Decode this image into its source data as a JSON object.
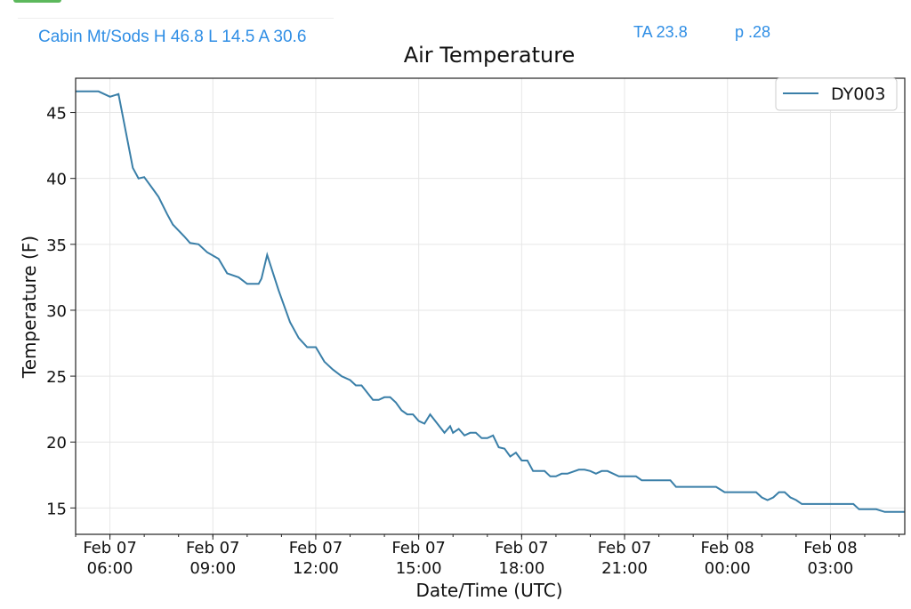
{
  "header": {
    "station_summary": "Cabin Mt/Sods H 46.8 L 14.5 A 30.6",
    "ta": "TA 23.8",
    "p": "p .28"
  },
  "colors": {
    "line": "#3a7fa8",
    "header_text": "#2f8ee5",
    "accent_bar": "#5cb85c"
  },
  "chart_data": {
    "type": "line",
    "title": "Air Temperature",
    "xlabel": "Date/Time (UTC)",
    "ylabel": "Temperature (F)",
    "xlim": [
      "02-07 05:00",
      "02-08 05:10"
    ],
    "ylim": [
      13,
      47.6
    ],
    "grid": true,
    "legend": "top-right",
    "xticks": [
      {
        "t": "02-07 06:00",
        "l1": "Feb 07",
        "l2": "06:00"
      },
      {
        "t": "02-07 09:00",
        "l1": "Feb 07",
        "l2": "09:00"
      },
      {
        "t": "02-07 12:00",
        "l1": "Feb 07",
        "l2": "12:00"
      },
      {
        "t": "02-07 15:00",
        "l1": "Feb 07",
        "l2": "15:00"
      },
      {
        "t": "02-07 18:00",
        "l1": "Feb 07",
        "l2": "18:00"
      },
      {
        "t": "02-07 21:00",
        "l1": "Feb 07",
        "l2": "21:00"
      },
      {
        "t": "02-08 00:00",
        "l1": "Feb 08",
        "l2": "00:00"
      },
      {
        "t": "02-08 03:00",
        "l1": "Feb 08",
        "l2": "03:00"
      }
    ],
    "yticks": [
      15,
      20,
      25,
      30,
      35,
      40,
      45
    ],
    "series": [
      {
        "name": "DY003",
        "points": [
          [
            "02-07 05:00",
            46.6
          ],
          [
            "02-07 05:40",
            46.6
          ],
          [
            "02-07 06:00",
            46.2
          ],
          [
            "02-07 06:15",
            46.4
          ],
          [
            "02-07 06:40",
            40.8
          ],
          [
            "02-07 06:50",
            40.0
          ],
          [
            "02-07 07:00",
            40.1
          ],
          [
            "02-07 07:15",
            39.2
          ],
          [
            "02-07 07:25",
            38.6
          ],
          [
            "02-07 07:40",
            37.3
          ],
          [
            "02-07 07:50",
            36.5
          ],
          [
            "02-07 08:10",
            35.6
          ],
          [
            "02-07 08:20",
            35.1
          ],
          [
            "02-07 08:35",
            35.0
          ],
          [
            "02-07 08:50",
            34.4
          ],
          [
            "02-07 09:10",
            33.9
          ],
          [
            "02-07 09:25",
            32.8
          ],
          [
            "02-07 09:45",
            32.5
          ],
          [
            "02-07 10:00",
            32.0
          ],
          [
            "02-07 10:20",
            32.0
          ],
          [
            "02-07 10:25",
            32.4
          ],
          [
            "02-07 10:35",
            34.2
          ],
          [
            "02-07 10:55",
            31.5
          ],
          [
            "02-07 11:15",
            29.1
          ],
          [
            "02-07 11:30",
            27.9
          ],
          [
            "02-07 11:45",
            27.2
          ],
          [
            "02-07 12:00",
            27.2
          ],
          [
            "02-07 12:15",
            26.1
          ],
          [
            "02-07 12:30",
            25.5
          ],
          [
            "02-07 12:45",
            25.0
          ],
          [
            "02-07 13:00",
            24.7
          ],
          [
            "02-07 13:10",
            24.3
          ],
          [
            "02-07 13:20",
            24.3
          ],
          [
            "02-07 13:40",
            23.2
          ],
          [
            "02-07 13:50",
            23.2
          ],
          [
            "02-07 14:00",
            23.4
          ],
          [
            "02-07 14:10",
            23.4
          ],
          [
            "02-07 14:20",
            23.0
          ],
          [
            "02-07 14:30",
            22.4
          ],
          [
            "02-07 14:40",
            22.1
          ],
          [
            "02-07 14:50",
            22.1
          ],
          [
            "02-07 15:00",
            21.6
          ],
          [
            "02-07 15:10",
            21.4
          ],
          [
            "02-07 15:20",
            22.1
          ],
          [
            "02-07 15:45",
            20.7
          ],
          [
            "02-07 15:55",
            21.2
          ],
          [
            "02-07 16:00",
            20.7
          ],
          [
            "02-07 16:10",
            21.0
          ],
          [
            "02-07 16:20",
            20.5
          ],
          [
            "02-07 16:30",
            20.7
          ],
          [
            "02-07 16:40",
            20.7
          ],
          [
            "02-07 16:50",
            20.3
          ],
          [
            "02-07 17:00",
            20.3
          ],
          [
            "02-07 17:10",
            20.5
          ],
          [
            "02-07 17:20",
            19.6
          ],
          [
            "02-07 17:30",
            19.5
          ],
          [
            "02-07 17:40",
            18.9
          ],
          [
            "02-07 17:50",
            19.2
          ],
          [
            "02-07 18:00",
            18.6
          ],
          [
            "02-07 18:10",
            18.6
          ],
          [
            "02-07 18:20",
            17.8
          ],
          [
            "02-07 18:40",
            17.8
          ],
          [
            "02-07 18:50",
            17.4
          ],
          [
            "02-07 19:00",
            17.4
          ],
          [
            "02-07 19:10",
            17.6
          ],
          [
            "02-07 19:20",
            17.6
          ],
          [
            "02-07 19:40",
            17.9
          ],
          [
            "02-07 19:50",
            17.9
          ],
          [
            "02-07 20:00",
            17.8
          ],
          [
            "02-07 20:10",
            17.6
          ],
          [
            "02-07 20:20",
            17.8
          ],
          [
            "02-07 20:30",
            17.8
          ],
          [
            "02-07 20:50",
            17.4
          ],
          [
            "02-07 21:20",
            17.4
          ],
          [
            "02-07 21:30",
            17.1
          ],
          [
            "02-07 22:20",
            17.1
          ],
          [
            "02-07 22:30",
            16.6
          ],
          [
            "02-07 23:40",
            16.6
          ],
          [
            "02-07 23:55",
            16.2
          ],
          [
            "02-08 00:50",
            16.2
          ],
          [
            "02-08 01:00",
            15.8
          ],
          [
            "02-08 01:10",
            15.6
          ],
          [
            "02-08 01:20",
            15.8
          ],
          [
            "02-08 01:30",
            16.2
          ],
          [
            "02-08 01:40",
            16.2
          ],
          [
            "02-08 01:50",
            15.8
          ],
          [
            "02-08 02:00",
            15.6
          ],
          [
            "02-08 02:10",
            15.3
          ],
          [
            "02-08 03:40",
            15.3
          ],
          [
            "02-08 03:50",
            14.9
          ],
          [
            "02-08 04:20",
            14.9
          ],
          [
            "02-08 04:35",
            14.7
          ],
          [
            "02-08 05:10",
            14.7
          ]
        ]
      }
    ]
  }
}
